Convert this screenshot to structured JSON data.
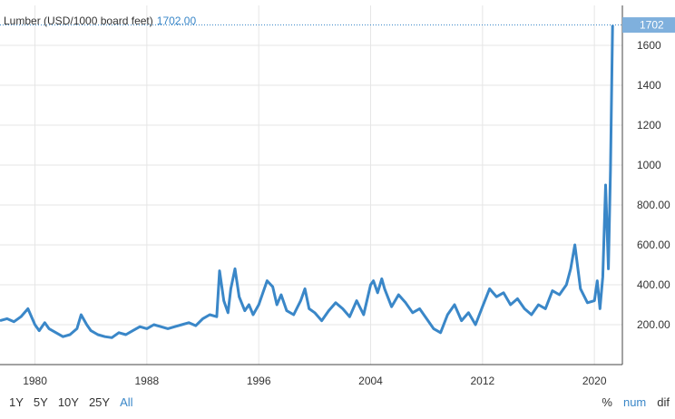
{
  "legend": {
    "label": "Lumber (USD/1000 board feet)",
    "value": "1702.00"
  },
  "last_value_badge": "1702",
  "range_buttons": [
    "1Y",
    "5Y",
    "10Y",
    "25Y",
    "All"
  ],
  "range_active": "All",
  "mode_buttons": [
    "%",
    "num",
    "dif"
  ],
  "mode_active": "num",
  "colors": {
    "line": "#3a87c8",
    "grid": "#e6e6e6",
    "badge": "#7fb0dd"
  },
  "chart_data": {
    "type": "line",
    "title": "",
    "xlabel": "",
    "ylabel": "",
    "xlim": [
      1977.5,
      2022.0
    ],
    "ylim": [
      0,
      1800
    ],
    "y_axis_side": "right",
    "grid": true,
    "x_ticks": [
      1980,
      1988,
      1996,
      2004,
      2012,
      2020
    ],
    "y_ticks": [
      200,
      400,
      600,
      800,
      1000,
      1200,
      1400,
      1600
    ],
    "y_tick_labels": [
      "200.00",
      "400.00",
      "600.00",
      "800.00",
      "1000",
      "1200",
      "1400",
      "1600"
    ],
    "series": [
      {
        "x": [
          1977.5,
          1978,
          1978.5,
          1979,
          1979.5,
          1980,
          1980.3,
          1980.7,
          1981,
          1981.5,
          1982,
          1982.5,
          1983,
          1983.3,
          1983.7,
          1984,
          1984.5,
          1985,
          1985.5,
          1986,
          1986.5,
          1987,
          1987.5,
          1988,
          1988.5,
          1989,
          1989.5,
          1990,
          1990.5,
          1991,
          1991.5,
          1992,
          1992.5,
          1993,
          1993.2,
          1993.5,
          1993.8,
          1994,
          1994.3,
          1994.6,
          1995,
          1995.3,
          1995.6,
          1996,
          1996.3,
          1996.6,
          1997,
          1997.3,
          1997.6,
          1998,
          1998.5,
          1999,
          1999.3,
          1999.6,
          2000,
          2000.5,
          2001,
          2001.5,
          2002,
          2002.5,
          2003,
          2003.5,
          2004,
          2004.2,
          2004.5,
          2004.8,
          2005,
          2005.5,
          2006,
          2006.5,
          2007,
          2007.5,
          2008,
          2008.5,
          2009,
          2009.5,
          2010,
          2010.5,
          2011,
          2011.5,
          2012,
          2012.5,
          2013,
          2013.5,
          2014,
          2014.5,
          2015,
          2015.5,
          2016,
          2016.5,
          2017,
          2017.5,
          2018,
          2018.3,
          2018.6,
          2019,
          2019.5,
          2020,
          2020.2,
          2020.4,
          2020.6,
          2020.8,
          2021,
          2021.15,
          2021.3
        ],
        "values": [
          220,
          230,
          215,
          240,
          280,
          200,
          170,
          210,
          180,
          160,
          140,
          150,
          180,
          250,
          200,
          170,
          150,
          140,
          135,
          160,
          150,
          170,
          190,
          180,
          200,
          190,
          180,
          190,
          200,
          210,
          195,
          230,
          250,
          240,
          470,
          320,
          260,
          380,
          480,
          340,
          270,
          300,
          250,
          300,
          360,
          420,
          390,
          300,
          350,
          270,
          250,
          320,
          380,
          280,
          260,
          220,
          270,
          310,
          280,
          240,
          320,
          250,
          400,
          420,
          360,
          430,
          380,
          290,
          350,
          310,
          260,
          280,
          230,
          180,
          160,
          250,
          300,
          220,
          260,
          200,
          290,
          380,
          340,
          360,
          300,
          330,
          280,
          250,
          300,
          280,
          370,
          350,
          400,
          480,
          600,
          380,
          310,
          320,
          420,
          280,
          440,
          900,
          480,
          980,
          1702
        ]
      }
    ]
  }
}
